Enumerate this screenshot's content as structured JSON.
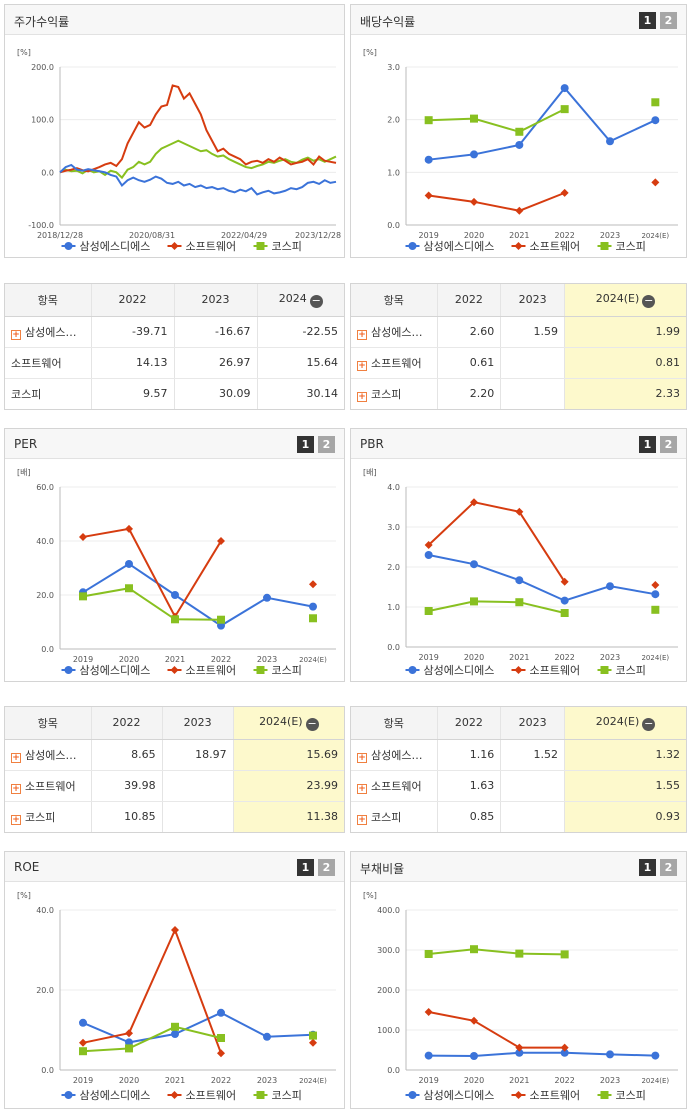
{
  "legend": {
    "s1": "삼성에스디에스",
    "s2": "소프트웨어",
    "s3": "코스피"
  },
  "colors": {
    "s1": "#3b73d9",
    "s2": "#d63c10",
    "s3": "#88c020"
  },
  "pager": {
    "p1": "1",
    "p2": "2"
  },
  "table_headers": {
    "item": "항목",
    "c2022": "2022",
    "c2023": "2023",
    "c2024": "2024",
    "c2024e": "2024(E)"
  },
  "panels": {
    "stock": {
      "title": "주가수익률"
    },
    "dividend": {
      "title": "배당수익률"
    },
    "per": {
      "title": "PER"
    },
    "pbr": {
      "title": "PBR"
    },
    "roe": {
      "title": "ROE"
    },
    "debt": {
      "title": "부채비율"
    }
  },
  "tables": {
    "stock": [
      {
        "name": "삼성에스…",
        "v2022": "-39.71",
        "v2023": "-16.67",
        "v2024": "-22.55",
        "plus": true
      },
      {
        "name": "소프트웨어",
        "v2022": "14.13",
        "v2023": "26.97",
        "v2024": "15.64",
        "plus": false
      },
      {
        "name": "코스피",
        "v2022": "9.57",
        "v2023": "30.09",
        "v2024": "30.14",
        "plus": false
      }
    ],
    "dividend": [
      {
        "name": "삼성에스…",
        "v2022": "2.60",
        "v2023": "1.59",
        "v2024": "1.99",
        "plus": true
      },
      {
        "name": "소프트웨어",
        "v2022": "0.61",
        "v2023": "",
        "v2024": "0.81",
        "plus": true
      },
      {
        "name": "코스피",
        "v2022": "2.20",
        "v2023": "",
        "v2024": "2.33",
        "plus": true
      }
    ],
    "per": [
      {
        "name": "삼성에스…",
        "v2022": "8.65",
        "v2023": "18.97",
        "v2024": "15.69",
        "plus": true
      },
      {
        "name": "소프트웨어",
        "v2022": "39.98",
        "v2023": "",
        "v2024": "23.99",
        "plus": true
      },
      {
        "name": "코스피",
        "v2022": "10.85",
        "v2023": "",
        "v2024": "11.38",
        "plus": true
      }
    ],
    "pbr": [
      {
        "name": "삼성에스…",
        "v2022": "1.16",
        "v2023": "1.52",
        "v2024": "1.32",
        "plus": true
      },
      {
        "name": "소프트웨어",
        "v2022": "1.63",
        "v2023": "",
        "v2024": "1.55",
        "plus": true
      },
      {
        "name": "코스피",
        "v2022": "0.85",
        "v2023": "",
        "v2024": "0.93",
        "plus": true
      }
    ]
  },
  "chart_data": [
    {
      "id": "stock",
      "type": "line",
      "title": "주가수익률",
      "unit": "[%]",
      "ylim": [
        -100,
        200
      ],
      "yticks": [
        "200.0",
        "100.0",
        "0.0",
        "-100.0"
      ],
      "ytick_values": [
        200,
        100,
        0,
        -100
      ],
      "xticks": [
        "2018/12/28",
        "2020/08/31",
        "2022/04/29",
        "2023/12/28"
      ],
      "series": [
        {
          "name": "삼성에스디에스",
          "values": [
            0,
            10,
            14,
            5,
            3,
            6,
            4,
            2,
            0,
            -5,
            -8,
            -25,
            -15,
            -10,
            -15,
            -18,
            -14,
            -8,
            -12,
            -20,
            -22,
            -18,
            -25,
            -22,
            -28,
            -25,
            -30,
            -28,
            -32,
            -30,
            -35,
            -38,
            -33,
            -36,
            -30,
            -42,
            -38,
            -35,
            -40,
            -38,
            -35,
            -30,
            -32,
            -28,
            -20,
            -18,
            -22,
            -15,
            -20,
            -18
          ]
        },
        {
          "name": "소프트웨어",
          "values": [
            0,
            3,
            5,
            8,
            4,
            2,
            6,
            10,
            15,
            18,
            12,
            25,
            55,
            75,
            95,
            85,
            90,
            110,
            125,
            128,
            165,
            162,
            140,
            150,
            130,
            110,
            80,
            60,
            40,
            45,
            35,
            30,
            25,
            15,
            20,
            22,
            18,
            25,
            20,
            28,
            22,
            15,
            18,
            20,
            25,
            15,
            30,
            22,
            20,
            18
          ]
        },
        {
          "name": "코스피",
          "values": [
            0,
            5,
            2,
            3,
            -2,
            5,
            0,
            2,
            -5,
            3,
            0,
            -10,
            5,
            10,
            20,
            15,
            20,
            35,
            45,
            50,
            55,
            60,
            55,
            50,
            45,
            40,
            42,
            35,
            30,
            32,
            25,
            20,
            15,
            10,
            8,
            12,
            15,
            20,
            18,
            22,
            25,
            20,
            18,
            24,
            28,
            22,
            25,
            20,
            25,
            30
          ]
        }
      ]
    },
    {
      "id": "dividend",
      "type": "line",
      "title": "배당수익률",
      "unit": "[%]",
      "ylim": [
        0,
        3
      ],
      "yticks": [
        "3.0",
        "2.0",
        "1.0",
        "0.0"
      ],
      "ytick_values": [
        3,
        2,
        1,
        0
      ],
      "categories": [
        "2019",
        "2020",
        "2021",
        "2022",
        "2023",
        "2024(E)"
      ],
      "series": [
        {
          "name": "삼성에스디에스",
          "values": [
            1.24,
            1.34,
            1.52,
            2.6,
            1.59,
            1.99
          ]
        },
        {
          "name": "소프트웨어",
          "values": [
            0.56,
            0.44,
            0.27,
            0.61,
            null,
            0.81
          ]
        },
        {
          "name": "코스피",
          "values": [
            1.99,
            2.02,
            1.77,
            2.2,
            null,
            2.33
          ]
        }
      ]
    },
    {
      "id": "per",
      "type": "line",
      "title": "PER",
      "unit": "[배]",
      "ylim": [
        0,
        60
      ],
      "yticks": [
        "60.0",
        "40.0",
        "20.0",
        "0.0"
      ],
      "ytick_values": [
        60,
        40,
        20,
        0
      ],
      "categories": [
        "2019",
        "2020",
        "2021",
        "2022",
        "2023",
        "2024(E)"
      ],
      "series": [
        {
          "name": "삼성에스디에스",
          "values": [
            21,
            31.5,
            20,
            8.65,
            18.97,
            15.69
          ]
        },
        {
          "name": "소프트웨어",
          "values": [
            41.5,
            44.5,
            12,
            39.98,
            null,
            23.99
          ]
        },
        {
          "name": "코스피",
          "values": [
            19.5,
            22.5,
            11,
            10.85,
            null,
            11.38
          ]
        }
      ]
    },
    {
      "id": "pbr",
      "type": "line",
      "title": "PBR",
      "unit": "[배]",
      "ylim": [
        0,
        4
      ],
      "yticks": [
        "4.0",
        "3.0",
        "2.0",
        "1.0",
        "0.0"
      ],
      "ytick_values": [
        4,
        3,
        2,
        1,
        0
      ],
      "categories": [
        "2019",
        "2020",
        "2021",
        "2022",
        "2023",
        "2024(E)"
      ],
      "series": [
        {
          "name": "삼성에스디에스",
          "values": [
            2.3,
            2.07,
            1.67,
            1.16,
            1.52,
            1.32
          ]
        },
        {
          "name": "소프트웨어",
          "values": [
            2.55,
            3.62,
            3.38,
            1.63,
            null,
            1.55
          ]
        },
        {
          "name": "코스피",
          "values": [
            0.9,
            1.14,
            1.12,
            0.85,
            null,
            0.93
          ]
        }
      ]
    },
    {
      "id": "roe",
      "type": "line",
      "title": "ROE",
      "unit": "[%]",
      "ylim": [
        0,
        40
      ],
      "yticks": [
        "40.0",
        "20.0",
        "0.0"
      ],
      "ytick_values": [
        40,
        20,
        0
      ],
      "categories": [
        "2019",
        "2020",
        "2021",
        "2022",
        "2023",
        "2024(E)"
      ],
      "series": [
        {
          "name": "삼성에스디에스",
          "values": [
            11.8,
            6.9,
            9.0,
            14.3,
            8.3,
            8.8
          ]
        },
        {
          "name": "소프트웨어",
          "values": [
            6.8,
            9.2,
            35.0,
            4.2,
            null,
            6.8
          ]
        },
        {
          "name": "코스피",
          "values": [
            4.7,
            5.4,
            10.8,
            8.0,
            null,
            8.6
          ]
        }
      ]
    },
    {
      "id": "debt",
      "type": "line",
      "title": "부채비율",
      "unit": "[%]",
      "ylim": [
        0,
        400
      ],
      "yticks": [
        "400.0",
        "300.0",
        "200.0",
        "100.0",
        "0.0"
      ],
      "ytick_values": [
        400,
        300,
        200,
        100,
        0
      ],
      "categories": [
        "2019",
        "2020",
        "2021",
        "2022",
        "2023",
        "2024(E)"
      ],
      "series": [
        {
          "name": "삼성에스디에스",
          "values": [
            36,
            35,
            43,
            43,
            39,
            36
          ]
        },
        {
          "name": "소프트웨어",
          "values": [
            145,
            123,
            56,
            56,
            null,
            null
          ]
        },
        {
          "name": "코스피",
          "values": [
            290,
            302,
            291,
            289,
            null,
            null
          ]
        }
      ]
    }
  ]
}
